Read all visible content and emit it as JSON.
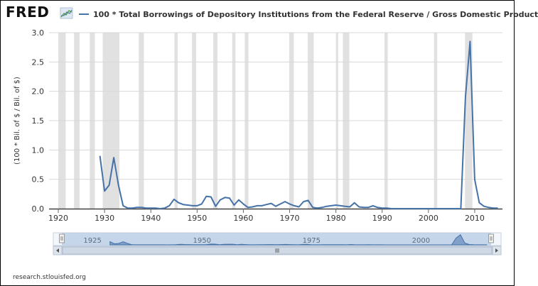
{
  "header": {
    "logo_text": "FRED",
    "logo_icon": "fred-graph-icon",
    "legend_label": "100 * Total Borrowings of Depository Institutions from the Federal Reserve / Gross Domestic Product",
    "series_color": "#4572a7"
  },
  "footer": {
    "source": "research.stlouisfed.org"
  },
  "chart_data": {
    "type": "line",
    "title": "",
    "xlabel": "",
    "ylabel": "(100 * Bil. of $ / Bil. of $)",
    "xlim": [
      1918,
      2016
    ],
    "ylim": [
      0,
      3.0
    ],
    "x_ticks": [
      1920,
      1930,
      1940,
      1950,
      1960,
      1970,
      1980,
      1990,
      2000,
      2010
    ],
    "y_ticks": [
      "0.0",
      "0.5",
      "1.0",
      "1.5",
      "2.0",
      "2.5",
      "3.0"
    ],
    "grid": "horizontal",
    "legend_position": "top",
    "recession_color": "#e1e1e1",
    "recessions": [
      [
        1920.0,
        1921.6
      ],
      [
        1923.4,
        1924.6
      ],
      [
        1926.8,
        1927.9
      ],
      [
        1929.6,
        1933.2
      ],
      [
        1937.4,
        1938.5
      ],
      [
        1945.1,
        1945.8
      ],
      [
        1948.9,
        1949.8
      ],
      [
        1953.5,
        1954.4
      ],
      [
        1957.6,
        1958.3
      ],
      [
        1960.3,
        1961.1
      ],
      [
        1969.9,
        1970.9
      ],
      [
        1973.9,
        1975.2
      ],
      [
        1980.0,
        1980.5
      ],
      [
        1981.5,
        1982.9
      ],
      [
        1990.5,
        1991.2
      ],
      [
        2001.2,
        2001.9
      ],
      [
        2007.9,
        2009.5
      ]
    ],
    "series": [
      {
        "color": "#4572a7",
        "x": [
          1929,
          1930,
          1931,
          1932,
          1933,
          1934,
          1935,
          1936,
          1937,
          1938,
          1939,
          1940,
          1941,
          1942,
          1943,
          1944,
          1945,
          1946,
          1947,
          1948,
          1949,
          1950,
          1951,
          1952,
          1953,
          1954,
          1955,
          1956,
          1957,
          1958,
          1959,
          1960,
          1961,
          1962,
          1963,
          1964,
          1965,
          1966,
          1967,
          1968,
          1969,
          1970,
          1971,
          1972,
          1973,
          1974,
          1975,
          1976,
          1977,
          1978,
          1979,
          1980,
          1981,
          1982,
          1983,
          1984,
          1985,
          1986,
          1987,
          1988,
          1989,
          1990,
          1991,
          1992,
          1993,
          1994,
          1995,
          1996,
          1997,
          1998,
          1999,
          2000,
          2001,
          2002,
          2003,
          2004,
          2005,
          2006,
          2007,
          2008,
          2009,
          2010,
          2011,
          2012,
          2013,
          2014,
          2015
        ],
        "y": [
          0.9,
          0.3,
          0.4,
          0.87,
          0.4,
          0.05,
          0.01,
          0.01,
          0.02,
          0.02,
          0.01,
          0.01,
          0.01,
          0.0,
          0.01,
          0.05,
          0.16,
          0.1,
          0.07,
          0.06,
          0.05,
          0.05,
          0.08,
          0.21,
          0.2,
          0.04,
          0.15,
          0.19,
          0.18,
          0.06,
          0.15,
          0.08,
          0.02,
          0.03,
          0.05,
          0.05,
          0.07,
          0.09,
          0.04,
          0.08,
          0.12,
          0.08,
          0.05,
          0.03,
          0.12,
          0.14,
          0.02,
          0.01,
          0.02,
          0.04,
          0.05,
          0.06,
          0.05,
          0.04,
          0.03,
          0.1,
          0.03,
          0.02,
          0.02,
          0.05,
          0.02,
          0.01,
          0.01,
          0.0,
          0.0,
          0.0,
          0.0,
          0.0,
          0.0,
          0.0,
          0.0,
          0.0,
          0.0,
          0.0,
          0.0,
          0.0,
          0.0,
          0.0,
          0.0,
          1.9,
          2.85,
          0.5,
          0.1,
          0.04,
          0.02,
          0.01,
          0.01
        ]
      }
    ]
  },
  "navigator": {
    "labels": [
      "1925",
      "1950",
      "1975",
      "2000"
    ],
    "left_handle_icon": "left-handle-icon",
    "right_handle_icon": "right-handle-icon",
    "scroll_left_icon": "arrow-left-icon",
    "scroll_right_icon": "arrow-right-icon",
    "scrollbar_grip_icon": "grip-icon"
  }
}
